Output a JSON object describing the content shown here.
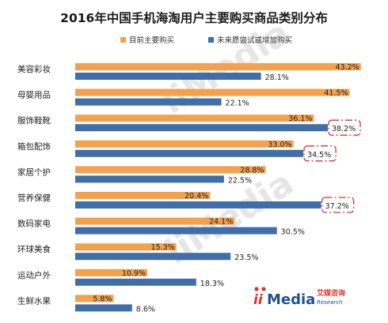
{
  "chart_data": {
    "type": "bar",
    "orientation": "horizontal",
    "title": "2016年中国手机海淘用户主要购买商品类别分布",
    "legend_position": "top",
    "categories": [
      "美容彩妆",
      "母婴用品",
      "服饰鞋靴",
      "箱包配饰",
      "家居个护",
      "营养保健",
      "数码家电",
      "环球美食",
      "运动户外",
      "生鲜水果"
    ],
    "series": [
      {
        "name": "目前主要购买",
        "color": "#f5a04a",
        "values": [
          43.2,
          41.5,
          36.1,
          33.0,
          28.8,
          20.4,
          24.1,
          15.3,
          10.9,
          5.8
        ],
        "labels": [
          "43.2%",
          "41.5%",
          "36.1%",
          "33.0%",
          "28.8%",
          "20.4%",
          "24.1%",
          "15.3%",
          "10.9%",
          "5.8%"
        ]
      },
      {
        "name": "未来愿尝试或增加购买",
        "color": "#3f6ea8",
        "values": [
          28.1,
          22.1,
          38.2,
          34.5,
          22.5,
          37.2,
          30.5,
          23.5,
          18.3,
          8.6
        ],
        "labels": [
          "28.1%",
          "22.1%",
          "38.2%",
          "34.5%",
          "22.5%",
          "37.2%",
          "30.5%",
          "23.5%",
          "18.3%",
          "8.6%"
        ]
      }
    ],
    "highlighted_labels": [
      2,
      3,
      5
    ],
    "highlight_color": "#e0312a",
    "xlim": [
      0,
      45
    ],
    "grid": false
  },
  "brand": {
    "logo_mark": "ii",
    "name": "Media",
    "cn": "艾媒咨询",
    "en": "Research",
    "color": "#e0312a"
  },
  "watermark": "iiMedia"
}
